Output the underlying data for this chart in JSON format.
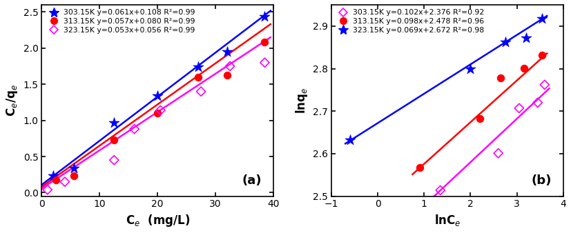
{
  "panel_a": {
    "title": "(a)",
    "xlabel": "C$_e$  (mg/L)",
    "ylabel": "C$_e$/q$_e$",
    "xlim": [
      0,
      40
    ],
    "ylim": [
      -0.05,
      2.6
    ],
    "xticks": [
      0,
      10,
      20,
      30,
      40
    ],
    "yticks": [
      0.0,
      0.5,
      1.0,
      1.5,
      2.0,
      2.5
    ],
    "series": [
      {
        "label": "303.15K y=0.061x+0.108 R²=0.99",
        "color": "blue",
        "line_color": "blue",
        "marker": "star",
        "slope": 0.061,
        "intercept": 0.108,
        "x_data": [
          2.0,
          5.5,
          12.5,
          20.0,
          27.0,
          32.0,
          38.5
        ],
        "y_data": [
          0.23,
          0.34,
          0.97,
          1.34,
          1.74,
          1.95,
          2.44
        ],
        "fit_x": [
          0.0,
          39.5
        ]
      },
      {
        "label": "313.15K y=0.057x+0.080 R²=0.99",
        "color": "red",
        "line_color": "red",
        "marker": "circle",
        "slope": 0.057,
        "intercept": 0.08,
        "x_data": [
          2.5,
          5.5,
          12.5,
          20.0,
          27.0,
          32.0,
          38.5
        ],
        "y_data": [
          0.18,
          0.23,
          0.73,
          1.1,
          1.6,
          1.63,
          2.08
        ],
        "fit_x": [
          0.0,
          39.5
        ]
      },
      {
        "label": "323.15K y=0.053x+0.056 R²=0.99",
        "color": "magenta",
        "line_color": "magenta",
        "marker": "diamond_open",
        "slope": 0.053,
        "intercept": 0.056,
        "x_data": [
          1.0,
          4.0,
          12.5,
          16.0,
          20.5,
          27.5,
          32.5,
          38.5
        ],
        "y_data": [
          0.04,
          0.15,
          0.45,
          0.88,
          1.14,
          1.4,
          1.75,
          1.8
        ],
        "fit_x": [
          0.0,
          39.5
        ]
      }
    ]
  },
  "panel_b": {
    "title": "(b)",
    "xlabel": "lnC$_e$",
    "ylabel": "lnq$_e$",
    "xlim": [
      -1,
      4
    ],
    "ylim": [
      2.5,
      2.95
    ],
    "xticks": [
      -1,
      0,
      1,
      2,
      3,
      4
    ],
    "yticks": [
      2.5,
      2.6,
      2.7,
      2.8,
      2.9
    ],
    "series": [
      {
        "label": "303.15K y=0.102x+2.376 R²=0.92",
        "color": "magenta",
        "line_color": "magenta",
        "marker": "diamond_open",
        "slope": 0.102,
        "intercept": 2.376,
        "x_data": [
          1.35,
          2.6,
          3.05,
          3.45,
          3.6
        ],
        "y_data": [
          2.514,
          2.601,
          2.707,
          2.72,
          2.762
        ],
        "fit_x": [
          1.1,
          3.7
        ]
      },
      {
        "label": "313.15K y=0.098x+2.478 R²=0.96",
        "color": "red",
        "line_color": "red",
        "marker": "circle",
        "slope": 0.098,
        "intercept": 2.478,
        "x_data": [
          0.9,
          2.2,
          2.65,
          3.15,
          3.55
        ],
        "y_data": [
          2.568,
          2.683,
          2.778,
          2.801,
          2.831
        ],
        "fit_x": [
          0.75,
          3.65
        ]
      },
      {
        "label": "323.15K y=0.069x+2.672 R²=0.98",
        "color": "blue",
        "line_color": "blue",
        "marker": "star",
        "slope": 0.069,
        "intercept": 2.672,
        "x_data": [
          -0.6,
          2.0,
          2.75,
          3.2,
          3.55
        ],
        "y_data": [
          2.633,
          2.8,
          2.862,
          2.872,
          2.917
        ],
        "fit_x": [
          -0.7,
          3.65
        ]
      }
    ]
  }
}
